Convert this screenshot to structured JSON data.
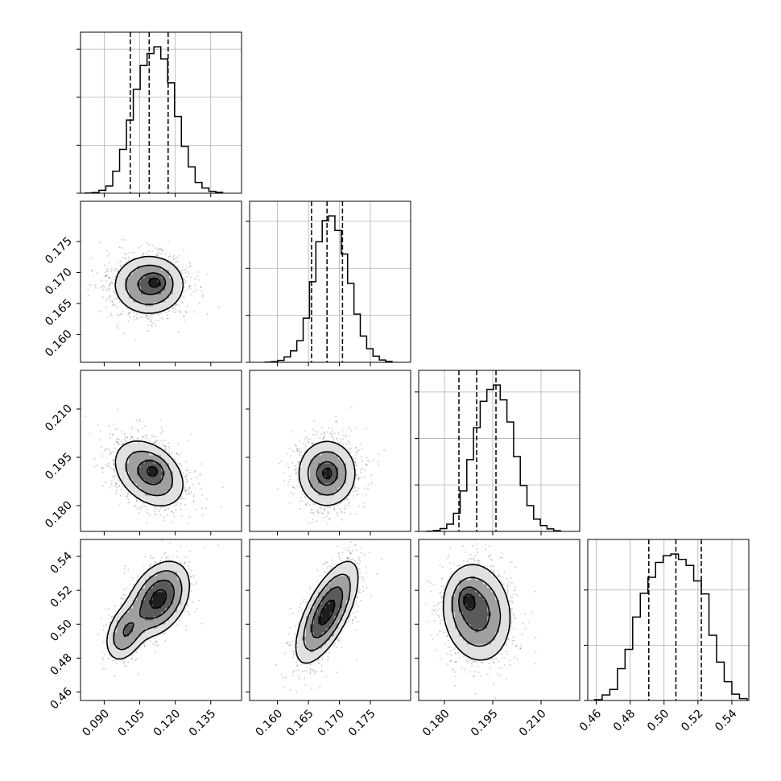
{
  "chart_data": {
    "type": "corner",
    "grid": true,
    "parameters": [
      {
        "range": [
          0.08,
          0.148
        ],
        "ticks": [
          "0.090",
          "0.105",
          "0.120",
          "0.135"
        ],
        "quantiles": [
          0.101,
          0.109,
          0.117
        ],
        "mean": 0.109,
        "sd": 0.0078
      },
      {
        "range": [
          0.1555,
          0.1815
        ],
        "ticks": [
          "0.160",
          "0.165",
          "0.170",
          "0.175"
        ],
        "quantiles": [
          0.1655,
          0.168,
          0.1705
        ],
        "mean": 0.168,
        "sd": 0.0025
      },
      {
        "range": [
          0.172,
          0.222
        ],
        "ticks": [
          "0.180",
          "0.195",
          "0.210"
        ],
        "quantiles": [
          0.1845,
          0.19,
          0.196
        ],
        "mean": 0.19,
        "sd": 0.0055
      },
      {
        "range": [
          0.455,
          0.55
        ],
        "ticks": [
          "0.46",
          "0.48",
          "0.50",
          "0.52",
          "0.54"
        ],
        "quantiles": [
          0.491,
          0.507,
          0.522
        ],
        "mean": 0.507,
        "sd": 0.015
      }
    ],
    "histograms": [
      {
        "param": 0,
        "bin_range": [
          0.082,
          0.14
        ],
        "counts": [
          1,
          3,
          12,
          30,
          92,
          183,
          305,
          433,
          532,
          582,
          610,
          560,
          460,
          320,
          195,
          110,
          45,
          22,
          8,
          4
        ]
      },
      {
        "param": 1,
        "bin_range": [
          0.158,
          0.1785
        ],
        "counts": [
          1,
          3,
          8,
          23,
          49,
          92,
          188,
          343,
          513,
          603,
          623,
          561,
          461,
          336,
          205,
          112,
          58,
          26,
          10,
          4
        ]
      },
      {
        "param": 2,
        "bin_range": [
          0.1745,
          0.216
        ],
        "counts": [
          1,
          4,
          12,
          31,
          78,
          174,
          309,
          446,
          560,
          611,
          630,
          566,
          471,
          322,
          197,
          111,
          53,
          25,
          11,
          3
        ]
      },
      {
        "param": 3,
        "bin_range": [
          0.459,
          0.549
        ],
        "counts": [
          3,
          20,
          40,
          115,
          185,
          302,
          388,
          446,
          500,
          524,
          530,
          511,
          489,
          433,
          386,
          236,
          139,
          68,
          23,
          7
        ]
      }
    ],
    "pairs": [
      {
        "x": 0,
        "y": 1,
        "corr": 0.0,
        "extra_mode": [
          0.112,
          0.1685
        ]
      },
      {
        "x": 0,
        "y": 2,
        "corr": -0.35,
        "extra_mode": [
          0.111,
          0.191
        ]
      },
      {
        "x": 1,
        "y": 2,
        "corr": 0.0,
        "extra_mode": [
          0.168,
          0.19
        ]
      },
      {
        "x": 0,
        "y": 3,
        "corr": 0.35,
        "mixture": [
          {
            "mean": [
              0.113,
              0.515
            ],
            "sd": [
              0.0065,
              0.011
            ],
            "w": 0.75
          },
          {
            "mean": [
              0.099,
              0.495
            ],
            "sd": [
              0.0045,
              0.009
            ],
            "w": 0.25
          }
        ]
      },
      {
        "x": 1,
        "y": 3,
        "corr": 0.68
      },
      {
        "x": 2,
        "y": 3,
        "corr": -0.12,
        "extra_mode": [
          0.187,
          0.515
        ]
      }
    ],
    "contour_levels": [
      "0.5-sigma",
      "1.0-sigma",
      "1.5-sigma",
      "2.0-sigma"
    ]
  }
}
